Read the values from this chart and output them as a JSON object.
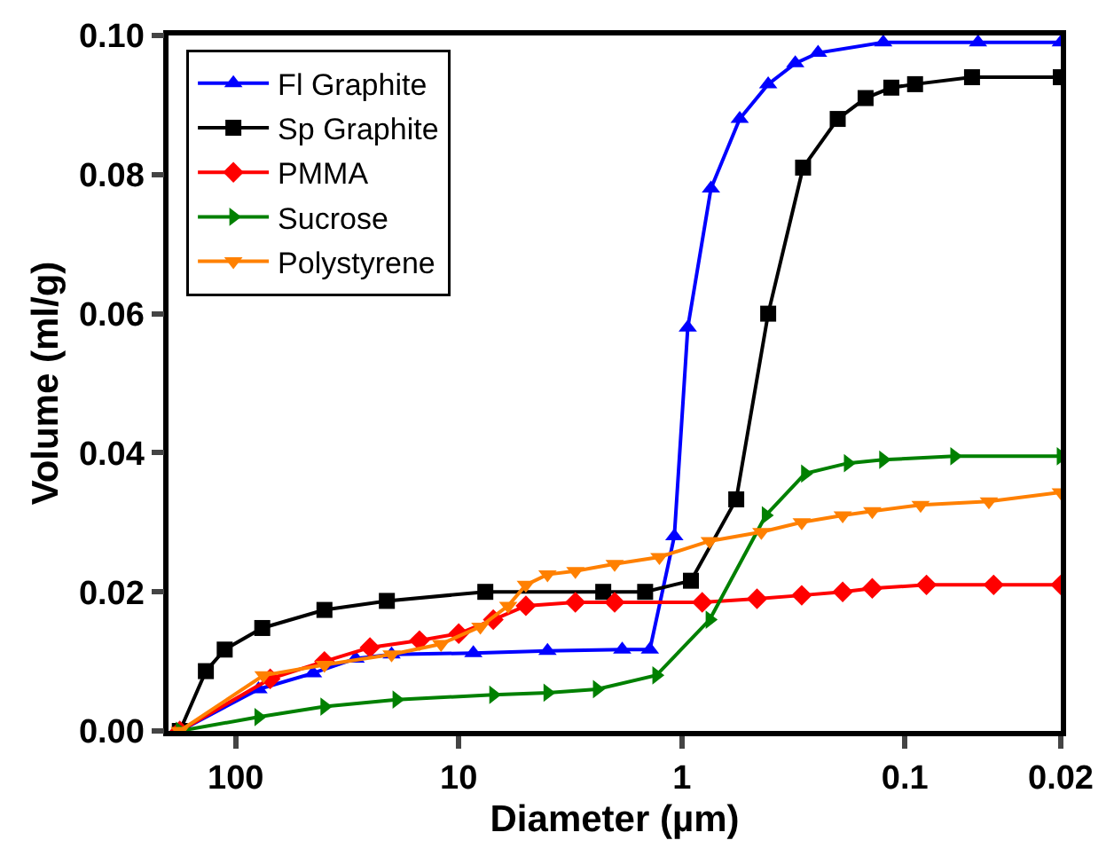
{
  "chart_data": {
    "type": "line",
    "xlabel": "Diameter (µm)",
    "ylabel": "Volume (ml/g)",
    "log": "x",
    "xlim": [
      200,
      0.02
    ],
    "xticks": [
      100,
      10,
      1,
      0.1,
      0.02
    ],
    "ylim": [
      0,
      0.1
    ],
    "yticks": [
      {
        "value": 0,
        "label": "0.00"
      },
      {
        "value": 0.02,
        "label": "0.02"
      },
      {
        "value": 0.04,
        "label": "0.04"
      },
      {
        "value": 0.06,
        "label": "0.06"
      },
      {
        "value": 0.08,
        "label": "0.08"
      },
      {
        "value": 0.1,
        "label": "0.10"
      }
    ],
    "legend": "top left",
    "line_style": "solid",
    "series": [
      {
        "name": "Fl Graphite",
        "color": "#0000ff",
        "marker": "triangle",
        "x": [
          178,
          79,
          45,
          29,
          20,
          8.6,
          4,
          1.85,
          1.39,
          1.08,
          0.94,
          0.74,
          0.55,
          0.41,
          0.31,
          0.245,
          0.125,
          0.047,
          0.02
        ],
        "values": [
          0,
          0.006,
          0.0083,
          0.0104,
          0.011,
          0.0112,
          0.0115,
          0.0117,
          0.0117,
          0.028,
          0.058,
          0.078,
          0.088,
          0.093,
          0.096,
          0.0975,
          0.099,
          0.099,
          0.099
        ]
      },
      {
        "name": "Sp Graphite",
        "color": "#000000",
        "marker": "square",
        "x": [
          178,
          136,
          112,
          76,
          40,
          21,
          7.6,
          2.25,
          1.46,
          0.91,
          0.57,
          0.41,
          0.286,
          0.2,
          0.15,
          0.115,
          0.09,
          0.05,
          0.02
        ],
        "values": [
          0,
          0.0086,
          0.0117,
          0.0148,
          0.0174,
          0.0187,
          0.02,
          0.02,
          0.02,
          0.0216,
          0.0333,
          0.06,
          0.081,
          0.088,
          0.091,
          0.0925,
          0.093,
          0.094,
          0.094
        ]
      },
      {
        "name": "PMMA",
        "color": "#ff0000",
        "marker": "diamond",
        "x": [
          178,
          70,
          40,
          25,
          15,
          10,
          7,
          5,
          3,
          2,
          0.81,
          0.46,
          0.29,
          0.19,
          0.14,
          0.08,
          0.04,
          0.02
        ],
        "values": [
          0,
          0.0075,
          0.01,
          0.012,
          0.013,
          0.014,
          0.016,
          0.018,
          0.0185,
          0.0185,
          0.0185,
          0.019,
          0.0195,
          0.02,
          0.0205,
          0.021,
          0.021,
          0.021
        ]
      },
      {
        "name": "Sucrose",
        "color": "#008000",
        "marker": "triangle-right",
        "x": [
          178,
          79,
          40,
          19,
          7,
          4,
          2.4,
          1.3,
          0.75,
          0.42,
          0.28,
          0.18,
          0.125,
          0.06,
          0.02
        ],
        "values": [
          0,
          0.002,
          0.0035,
          0.0045,
          0.0052,
          0.0055,
          0.006,
          0.008,
          0.016,
          0.031,
          0.037,
          0.0385,
          0.039,
          0.0395,
          0.0395
        ]
      },
      {
        "name": "Polystyrene",
        "color": "#ff8000",
        "marker": "triangle-down",
        "x": [
          178,
          75,
          40,
          20,
          12,
          8,
          6,
          5,
          4,
          3,
          2,
          1.26,
          0.75,
          0.44,
          0.29,
          0.19,
          0.14,
          0.085,
          0.042,
          0.02
        ],
        "values": [
          0,
          0.008,
          0.0095,
          0.011,
          0.0125,
          0.015,
          0.018,
          0.021,
          0.0225,
          0.023,
          0.024,
          0.025,
          0.0273,
          0.0286,
          0.03,
          0.031,
          0.0316,
          0.0325,
          0.033,
          0.0343
        ]
      }
    ]
  }
}
